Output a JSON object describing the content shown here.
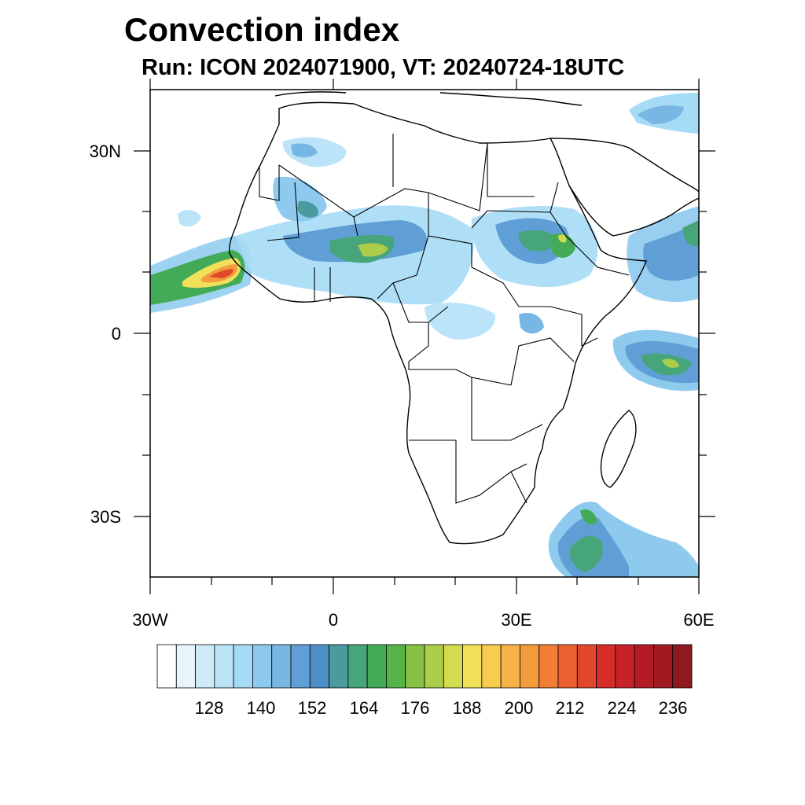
{
  "title": "Convection index",
  "subtitle": "Run: ICON 2024071900,  VT: 20240724-18UTC",
  "map": {
    "lon_range": [
      -30,
      60
    ],
    "lat_range": [
      -40,
      40
    ],
    "y_axis_labels": [
      {
        "lat": 30,
        "text": "30N"
      },
      {
        "lat": 0,
        "text": "0"
      },
      {
        "lat": -30,
        "text": "30S"
      }
    ],
    "x_axis_labels": [
      {
        "lon": -30,
        "text": "30W"
      },
      {
        "lon": 0,
        "text": "0"
      },
      {
        "lon": 30,
        "text": "30E"
      },
      {
        "lon": 60,
        "text": "60E"
      }
    ],
    "major_ticks_every_deg": 30,
    "minor_ticks_every_deg": 10
  },
  "colorbar": {
    "colors": [
      "#ffffff",
      "#e8f4fb",
      "#d0ebf8",
      "#bce4f8",
      "#a6dbf6",
      "#8dcaee",
      "#78b6e3",
      "#5f9fd5",
      "#4d8fc6",
      "#4a9a9e",
      "#47a57a",
      "#43ab58",
      "#55b348",
      "#86c146",
      "#abcd4a",
      "#d3dc4d",
      "#f0e05a",
      "#f7cc4f",
      "#f7b347",
      "#f49b3e",
      "#f27e36",
      "#ec6130",
      "#e1472c",
      "#d62c2a",
      "#c62228",
      "#b41c25",
      "#a11a22",
      "#8e1a1f"
    ],
    "labels": [
      "128",
      "140",
      "152",
      "164",
      "176",
      "188",
      "200",
      "212",
      "224",
      "236"
    ]
  }
}
